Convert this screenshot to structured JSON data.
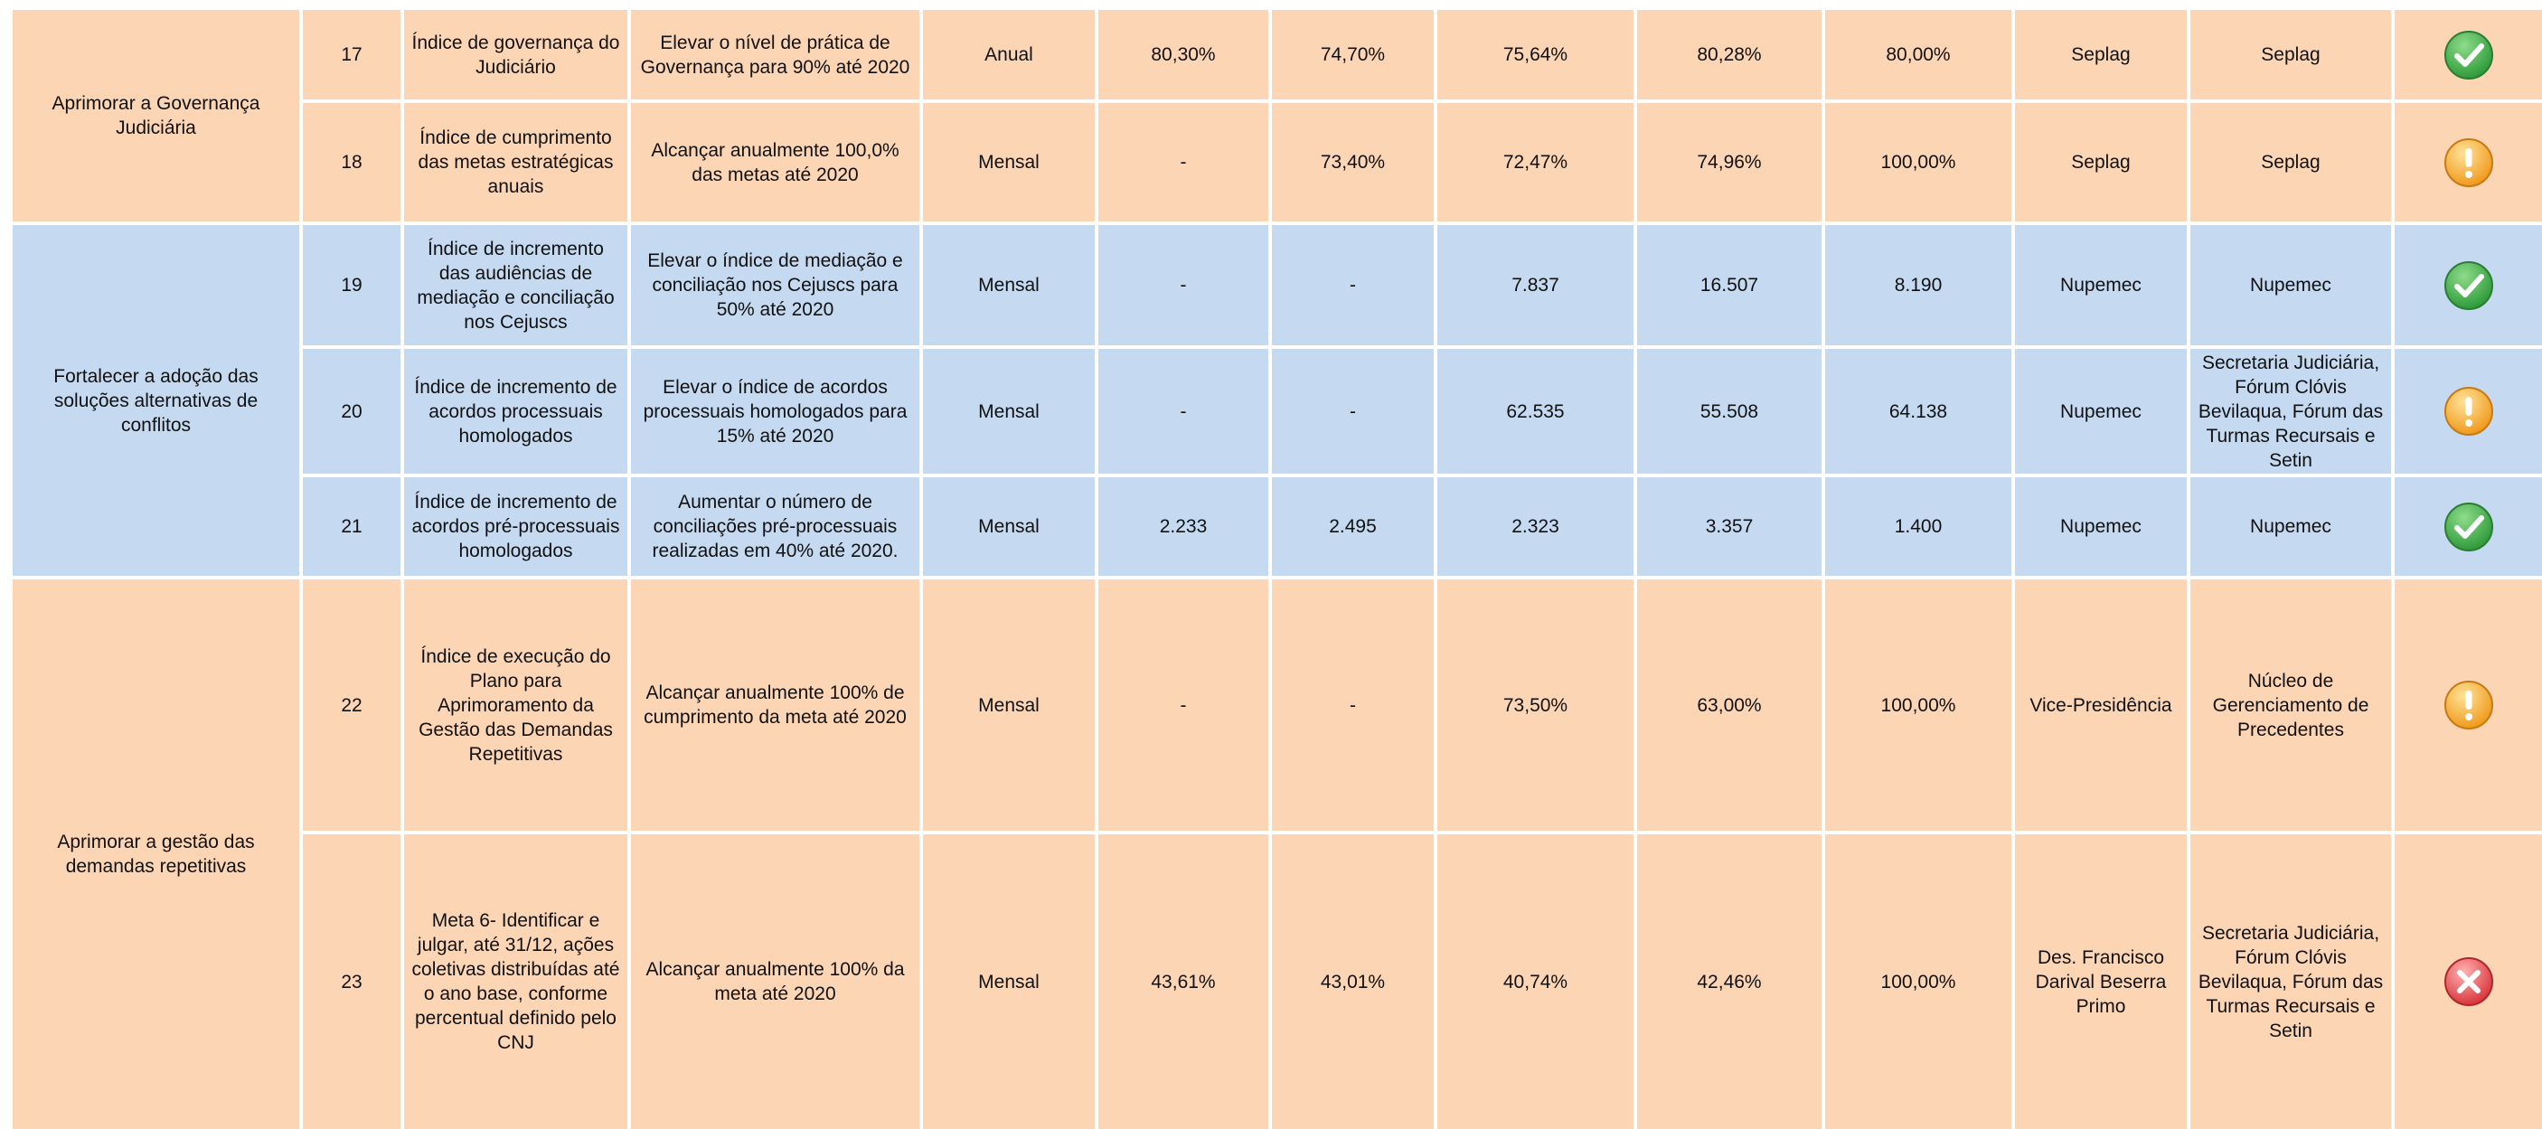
{
  "groups": [
    {
      "objective": "Aprimorar a Governança Judiciária",
      "rows": [
        [
          "17",
          "Índice de governança do Judiciário",
          "Elevar o nível de prática de Governança para 90% até 2020",
          "Anual",
          "80,30%",
          "74,70%",
          "75,64%",
          "80,28%",
          "80,00%",
          "Seplag",
          "Seplag"
        ],
        [
          "18",
          "Índice de cumprimento das metas estratégicas anuais",
          "Alcançar anualmente 100,0% das metas até 2020",
          "Mensal",
          "-",
          "73,40%",
          "72,47%",
          "74,96%",
          "100,00%",
          "Seplag",
          "Seplag"
        ]
      ]
    },
    {
      "objective": "Fortalecer a adoção das soluções alternativas de conflitos",
      "rows": [
        [
          "19",
          "Índice de incremento das audiências de mediação e conciliação nos Cejuscs",
          "Elevar o índice de mediação e conciliação nos Cejuscs para 50% até 2020",
          "Mensal",
          "-",
          "-",
          "7.837",
          "16.507",
          "8.190",
          "Nupemec",
          "Nupemec"
        ],
        [
          "20",
          "Índice de incremento de acordos processuais homologados",
          "Elevar o índice de acordos processuais homologados para 15% até 2020",
          "Mensal",
          "-",
          "-",
          "62.535",
          "55.508",
          "64.138",
          "Nupemec",
          "Secretaria Judiciária, Fórum Clóvis Bevilaqua, Fórum das Turmas Recursais  e Setin"
        ],
        [
          "21",
          "Índice de incremento de acordos pré-processuais homologados",
          "Aumentar o número de conciliações pré-processuais realizadas em 40% até 2020.",
          "Mensal",
          "2.233",
          "2.495",
          "2.323",
          "3.357",
          "1.400",
          "Nupemec",
          "Nupemec"
        ]
      ]
    },
    {
      "objective": "Aprimorar a gestão das demandas repetitivas",
      "rows": [
        [
          "22",
          "Índice de execução do Plano para Aprimoramento da Gestão das Demandas Repetitivas",
          "Alcançar anualmente 100% de cumprimento da meta até 2020",
          "Mensal",
          "-",
          "-",
          "73,50%",
          "63,00%",
          "100,00%",
          "Vice-Presidência",
          "Núcleo de Gerenciamento de Precedentes"
        ],
        [
          "23",
          "Meta 6- Identificar e julgar, até 31/12, ações coletivas distribuídas até o ano base, conforme percentual definido pelo CNJ",
          "Alcançar anualmente 100% da meta até 2020",
          "Mensal",
          "43,61%",
          "43,01%",
          "40,74%",
          "42,46%",
          "100,00%",
          "Des. Francisco Darival Beserra Primo",
          "Secretaria Judiciária, Fórum Clóvis Bevilaqua, Fórum das Turmas Recursais  e Setin"
        ]
      ]
    }
  ]
}
